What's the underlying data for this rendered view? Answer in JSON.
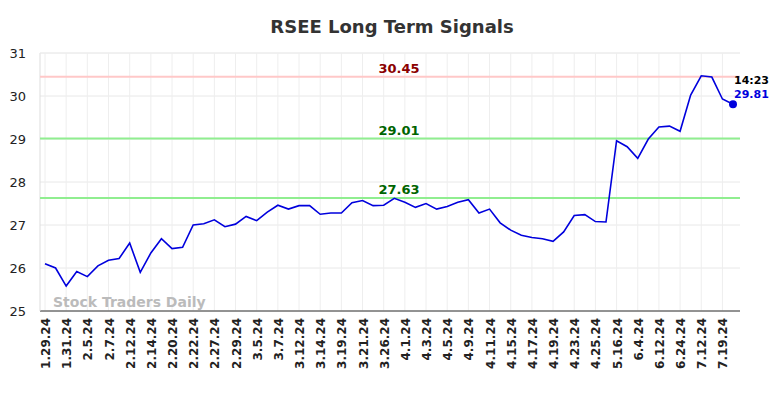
{
  "chart_data": {
    "type": "line",
    "title": "RSEE Long Term Signals",
    "categories": [
      "1.29.24",
      null,
      "1.31.24",
      null,
      "2.5.24",
      null,
      "2.7.24",
      null,
      "2.12.24",
      null,
      "2.14.24",
      null,
      "2.20.24",
      null,
      "2.22.24",
      null,
      "2.27.24",
      null,
      "2.29.24",
      null,
      "3.5.24",
      null,
      "3.7.24",
      null,
      "3.12.24",
      null,
      "3.14.24",
      null,
      "3.19.24",
      null,
      "3.21.24",
      null,
      "3.26.24",
      null,
      "4.1.24",
      null,
      "4.3.24",
      null,
      "4.5.24",
      null,
      "4.9.24",
      null,
      "4.11.24",
      null,
      "4.15.24",
      null,
      "4.17.24",
      null,
      "4.19.24",
      null,
      "4.23.24",
      null,
      "4.25.24",
      null,
      "5.16.24",
      null,
      "6.4.24",
      null,
      "6.12.24",
      null,
      "6.24.24",
      null,
      "7.12.24",
      null,
      "7.19.24",
      null
    ],
    "series": [
      {
        "name": "RSEE",
        "color": "#0000dd",
        "values": [
          26.1,
          26.0,
          25.58,
          25.92,
          25.8,
          26.05,
          26.18,
          26.22,
          26.58,
          25.9,
          26.35,
          26.68,
          26.45,
          26.48,
          27.0,
          27.03,
          27.12,
          26.96,
          27.02,
          27.2,
          27.1,
          27.3,
          27.46,
          27.37,
          27.45,
          27.45,
          27.25,
          27.28,
          27.28,
          27.52,
          27.57,
          27.45,
          27.46,
          27.62,
          27.53,
          27.41,
          27.5,
          27.37,
          27.43,
          27.53,
          27.59,
          27.28,
          27.37,
          27.05,
          26.88,
          26.76,
          26.71,
          26.68,
          26.62,
          26.84,
          27.22,
          27.24,
          27.08,
          27.07,
          28.96,
          28.82,
          28.55,
          29.0,
          29.28,
          29.3,
          29.18,
          30.02,
          30.47,
          30.44,
          29.93,
          29.81
        ]
      }
    ],
    "ylim": [
      25,
      31
    ],
    "yticks": [
      25,
      26,
      27,
      28,
      29,
      30,
      31
    ],
    "grid": true,
    "annotations": [
      {
        "text": "30.45",
        "value": 30.45,
        "color": "#8b0000"
      },
      {
        "text": "29.01",
        "value": 29.01,
        "color": "#006400"
      },
      {
        "text": "27.63",
        "value": 27.63,
        "color": "#006400"
      },
      {
        "text": "14:23"
      },
      {
        "text": "29.81",
        "value": 29.81
      }
    ],
    "watermark": "Stock Traders Daily"
  }
}
